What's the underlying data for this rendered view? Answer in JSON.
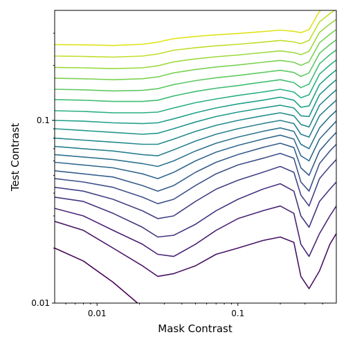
{
  "chart_data": {
    "type": "contour",
    "title": "",
    "xlabel": "Mask Contrast",
    "ylabel": "Test Contrast",
    "xscale": "log",
    "yscale": "log",
    "xlim": [
      0.005,
      0.5
    ],
    "ylim": [
      0.01,
      0.4
    ],
    "grid": false,
    "colormap": "viridis",
    "x_ticks": [
      {
        "value": 0.01,
        "label": "0.01"
      },
      {
        "value": 0.1,
        "label": "0.1"
      }
    ],
    "y_ticks": [
      {
        "value": 0.01,
        "label": "0.01"
      },
      {
        "value": 0.1,
        "label": "0.1"
      }
    ],
    "x": [
      0.005,
      0.008,
      0.013,
      0.021,
      0.027,
      0.035,
      0.05,
      0.07,
      0.1,
      0.15,
      0.2,
      0.25,
      0.28,
      0.32,
      0.38,
      0.45,
      0.5
    ],
    "contours": [
      {
        "level": 1,
        "color": "#440154",
        "y": [
          0.02,
          0.017,
          0.013,
          0.0095,
          0.008,
          0.008,
          0.0075,
          0.0075,
          0.0075,
          0.0075,
          0.0075,
          0.0075,
          0.0075,
          0.0075,
          0.0075,
          0.0075,
          0.0075
        ]
      },
      {
        "level": 2,
        "color": "#471163",
        "y": [
          0.028,
          0.025,
          0.02,
          0.016,
          0.014,
          0.0145,
          0.016,
          0.0185,
          0.02,
          0.022,
          0.023,
          0.0215,
          0.014,
          0.012,
          0.015,
          0.021,
          0.024
        ]
      },
      {
        "level": 3,
        "color": "#482374",
        "y": [
          0.033,
          0.03,
          0.025,
          0.021,
          0.0185,
          0.018,
          0.021,
          0.025,
          0.029,
          0.032,
          0.034,
          0.031,
          0.021,
          0.018,
          0.024,
          0.03,
          0.034
        ]
      },
      {
        "level": 4,
        "color": "#46337e",
        "y": [
          0.038,
          0.036,
          0.031,
          0.026,
          0.023,
          0.0235,
          0.027,
          0.032,
          0.037,
          0.042,
          0.045,
          0.041,
          0.03,
          0.026,
          0.036,
          0.042,
          0.046
        ]
      },
      {
        "level": 5,
        "color": "#424186",
        "y": [
          0.043,
          0.041,
          0.037,
          0.032,
          0.029,
          0.03,
          0.036,
          0.042,
          0.047,
          0.052,
          0.056,
          0.052,
          0.039,
          0.034,
          0.048,
          0.056,
          0.061
        ]
      },
      {
        "level": 6,
        "color": "#3c4f8a",
        "y": [
          0.048,
          0.046,
          0.043,
          0.038,
          0.035,
          0.037,
          0.044,
          0.051,
          0.057,
          0.062,
          0.066,
          0.062,
          0.046,
          0.041,
          0.058,
          0.068,
          0.074
        ]
      },
      {
        "level": 7,
        "color": "#365c8d",
        "y": [
          0.053,
          0.051,
          0.049,
          0.044,
          0.041,
          0.044,
          0.052,
          0.059,
          0.065,
          0.071,
          0.075,
          0.071,
          0.055,
          0.05,
          0.068,
          0.079,
          0.086
        ]
      },
      {
        "level": 8,
        "color": "#31688e",
        "y": [
          0.059,
          0.057,
          0.055,
          0.051,
          0.048,
          0.052,
          0.06,
          0.067,
          0.073,
          0.079,
          0.083,
          0.079,
          0.064,
          0.06,
          0.079,
          0.091,
          0.099
        ]
      },
      {
        "level": 9,
        "color": "#2c728e",
        "y": [
          0.065,
          0.063,
          0.061,
          0.058,
          0.056,
          0.06,
          0.068,
          0.075,
          0.081,
          0.087,
          0.091,
          0.087,
          0.074,
          0.07,
          0.091,
          0.105,
          0.113
        ]
      },
      {
        "level": 10,
        "color": "#277f8e",
        "y": [
          0.072,
          0.07,
          0.068,
          0.065,
          0.064,
          0.069,
          0.077,
          0.084,
          0.09,
          0.096,
          0.1,
          0.096,
          0.084,
          0.081,
          0.106,
          0.12,
          0.129
        ]
      },
      {
        "level": 11,
        "color": "#23898e",
        "y": [
          0.08,
          0.078,
          0.076,
          0.074,
          0.074,
          0.079,
          0.087,
          0.094,
          0.1,
          0.106,
          0.11,
          0.106,
          0.095,
          0.092,
          0.121,
          0.137,
          0.147
        ]
      },
      {
        "level": 12,
        "color": "#1f968b",
        "y": [
          0.09,
          0.088,
          0.086,
          0.084,
          0.085,
          0.09,
          0.098,
          0.105,
          0.111,
          0.117,
          0.121,
          0.117,
          0.106,
          0.105,
          0.138,
          0.156,
          0.167
        ]
      },
      {
        "level": 13,
        "color": "#1fa088",
        "y": [
          0.1,
          0.099,
          0.097,
          0.096,
          0.097,
          0.102,
          0.11,
          0.117,
          0.123,
          0.129,
          0.134,
          0.129,
          0.118,
          0.12,
          0.157,
          0.177,
          0.189
        ]
      },
      {
        "level": 14,
        "color": "#28ae80",
        "y": [
          0.113,
          0.112,
          0.11,
          0.11,
          0.111,
          0.117,
          0.125,
          0.131,
          0.137,
          0.143,
          0.148,
          0.143,
          0.133,
          0.138,
          0.179,
          0.201,
          0.214
        ]
      },
      {
        "level": 15,
        "color": "#3fbc73",
        "y": [
          0.13,
          0.129,
          0.127,
          0.127,
          0.129,
          0.136,
          0.144,
          0.15,
          0.155,
          0.162,
          0.167,
          0.161,
          0.151,
          0.158,
          0.204,
          0.229,
          0.243
        ]
      },
      {
        "level": 16,
        "color": "#5ec962",
        "y": [
          0.148,
          0.147,
          0.145,
          0.146,
          0.149,
          0.157,
          0.165,
          0.171,
          0.176,
          0.183,
          0.188,
          0.183,
          0.174,
          0.182,
          0.233,
          0.26,
          0.276
        ]
      },
      {
        "level": 17,
        "color": "#7ad151",
        "y": [
          0.17,
          0.169,
          0.167,
          0.169,
          0.173,
          0.182,
          0.19,
          0.196,
          0.201,
          0.208,
          0.213,
          0.208,
          0.2,
          0.209,
          0.266,
          0.296,
          0.314
        ]
      },
      {
        "level": 18,
        "color": "#9bd93c",
        "y": [
          0.195,
          0.194,
          0.192,
          0.194,
          0.199,
          0.209,
          0.217,
          0.223,
          0.228,
          0.235,
          0.24,
          0.235,
          0.229,
          0.239,
          0.303,
          0.337,
          0.357
        ]
      },
      {
        "level": 19,
        "color": "#bddf26",
        "y": [
          0.225,
          0.224,
          0.222,
          0.225,
          0.231,
          0.242,
          0.25,
          0.256,
          0.261,
          0.268,
          0.274,
          0.269,
          0.263,
          0.274,
          0.346,
          0.384,
          0.406
        ]
      },
      {
        "level": 20,
        "color": "#dfe318",
        "y": [
          0.26,
          0.259,
          0.257,
          0.261,
          0.268,
          0.28,
          0.288,
          0.294,
          0.299,
          0.306,
          0.312,
          0.307,
          0.302,
          0.314,
          0.395,
          0.438,
          0.462
        ]
      }
    ]
  }
}
